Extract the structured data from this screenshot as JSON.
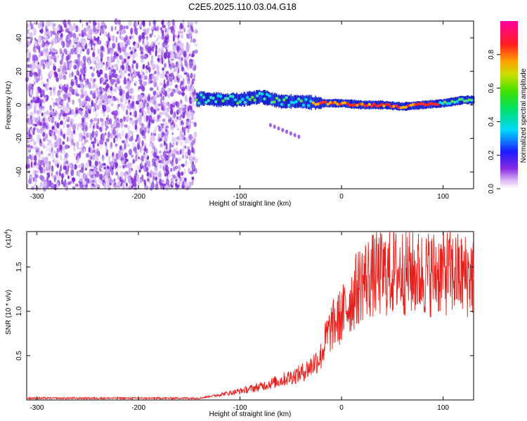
{
  "title": "C2E5.2025.110.03.04.G18",
  "chart_data": [
    {
      "type": "heatmap",
      "xlabel": "Height of straight line (km)",
      "ylabel": "Frequency (Hz)",
      "xlim": [
        -310,
        130
      ],
      "ylim": [
        -50,
        50
      ],
      "x_ticks": [
        -300,
        -200,
        -100,
        0,
        100
      ],
      "y_ticks": [
        -40,
        -20,
        0,
        20,
        40
      ],
      "colorbar": {
        "label": "Normalized spectral amplitude",
        "range": [
          0,
          1
        ],
        "ticks": [
          0.0,
          0.2,
          0.4,
          0.6,
          0.8
        ]
      },
      "regions": [
        {
          "x_range": [
            -310,
            -143
          ],
          "description_level": "noise",
          "freq_range": [
            -50,
            50
          ]
        },
        {
          "x_range": [
            -143,
            130
          ],
          "description_level": "signal band",
          "freq_range": [
            -5,
            8
          ]
        }
      ],
      "signal_track": [
        {
          "x": -140,
          "freq": 4
        },
        {
          "x": -120,
          "freq": 3
        },
        {
          "x": -100,
          "freq": 3
        },
        {
          "x": -80,
          "freq": 5
        },
        {
          "x": -60,
          "freq": 2
        },
        {
          "x": -40,
          "freq": 2
        },
        {
          "x": -20,
          "freq": 1
        },
        {
          "x": 0,
          "freq": 1
        },
        {
          "x": 20,
          "freq": 0
        },
        {
          "x": 40,
          "freq": 0
        },
        {
          "x": 60,
          "freq": -1
        },
        {
          "x": 80,
          "freq": 0
        },
        {
          "x": 100,
          "freq": 1
        },
        {
          "x": 120,
          "freq": 3
        }
      ]
    },
    {
      "type": "line",
      "xlabel": "Height of straight line (km)",
      "ylabel": "SNR (10 * v/v)",
      "y_multiplier": "(x10",
      "y_multiplier_exp": "4",
      "xlim": [
        -310,
        130
      ],
      "ylim": [
        0,
        1.9
      ],
      "x_ticks": [
        -300,
        -200,
        -100,
        0,
        100
      ],
      "y_ticks": [
        0.5,
        1.0,
        1.5
      ],
      "series": [
        {
          "color": "#e8201c",
          "x": [
            -310,
            -140,
            -130,
            -120,
            -100,
            -80,
            -60,
            -40,
            -30,
            -20,
            -15,
            -10,
            0,
            10,
            20,
            30,
            40,
            60,
            80,
            100,
            120,
            130
          ],
          "y": [
            0.02,
            0.02,
            0.04,
            0.06,
            0.1,
            0.15,
            0.22,
            0.3,
            0.38,
            0.5,
            0.7,
            0.82,
            0.95,
            1.15,
            1.35,
            1.4,
            1.42,
            1.45,
            1.42,
            1.45,
            1.4,
            1.42
          ]
        }
      ]
    }
  ]
}
